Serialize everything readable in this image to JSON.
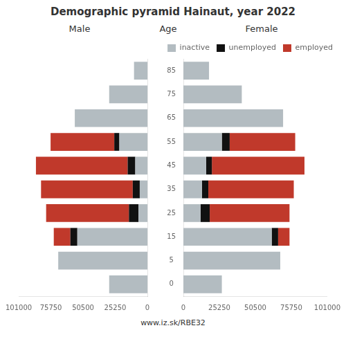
{
  "title": "Demographic pyramid Hainaut, year 2022",
  "annotations": [
    "Age",
    "www.iz.sk/RBE32"
  ],
  "chart_data": [
    {
      "type": "bar",
      "title": "Male",
      "orientation": "horizontal",
      "stacked": true,
      "categories": [
        0,
        5,
        15,
        25,
        35,
        45,
        55,
        65,
        75,
        85
      ],
      "series": [
        {
          "name": "inactive",
          "color": "#b3bcc1",
          "values": [
            30000,
            70000,
            55000,
            7000,
            6000,
            9500,
            22000,
            57000,
            30000,
            10500
          ]
        },
        {
          "name": "unemployed",
          "color": "#111111",
          "values": [
            0,
            0,
            5500,
            7500,
            5500,
            6000,
            4000,
            0,
            0,
            0
          ]
        },
        {
          "name": "employed",
          "color": "#c0392b",
          "values": [
            0,
            0,
            13000,
            65000,
            72000,
            72000,
            50000,
            0,
            0,
            0
          ]
        }
      ],
      "xlim": [
        101000,
        0
      ],
      "xticks": [
        101000,
        75750,
        50500,
        25250,
        0
      ],
      "grid": false,
      "legend": false,
      "tick_labels": "x"
    },
    {
      "type": "bar",
      "title": "Female",
      "orientation": "horizontal",
      "stacked": true,
      "categories": [
        0,
        5,
        15,
        25,
        35,
        45,
        55,
        65,
        75,
        85
      ],
      "series": [
        {
          "name": "inactive",
          "color": "#b3bcc1",
          "values": [
            27000,
            68000,
            62000,
            12000,
            13000,
            16000,
            27000,
            70000,
            41000,
            18000
          ]
        },
        {
          "name": "unemployed",
          "color": "#111111",
          "values": [
            0,
            0,
            4500,
            6500,
            4500,
            4000,
            5500,
            0,
            0,
            0
          ]
        },
        {
          "name": "employed",
          "color": "#c0392b",
          "values": [
            0,
            0,
            8000,
            56000,
            60000,
            65000,
            46000,
            0,
            0,
            0
          ]
        }
      ],
      "xlim": [
        0,
        101000
      ],
      "xticks": [
        0,
        25250,
        50500,
        75750,
        101000
      ],
      "grid": false,
      "legend": "upper right"
    }
  ]
}
